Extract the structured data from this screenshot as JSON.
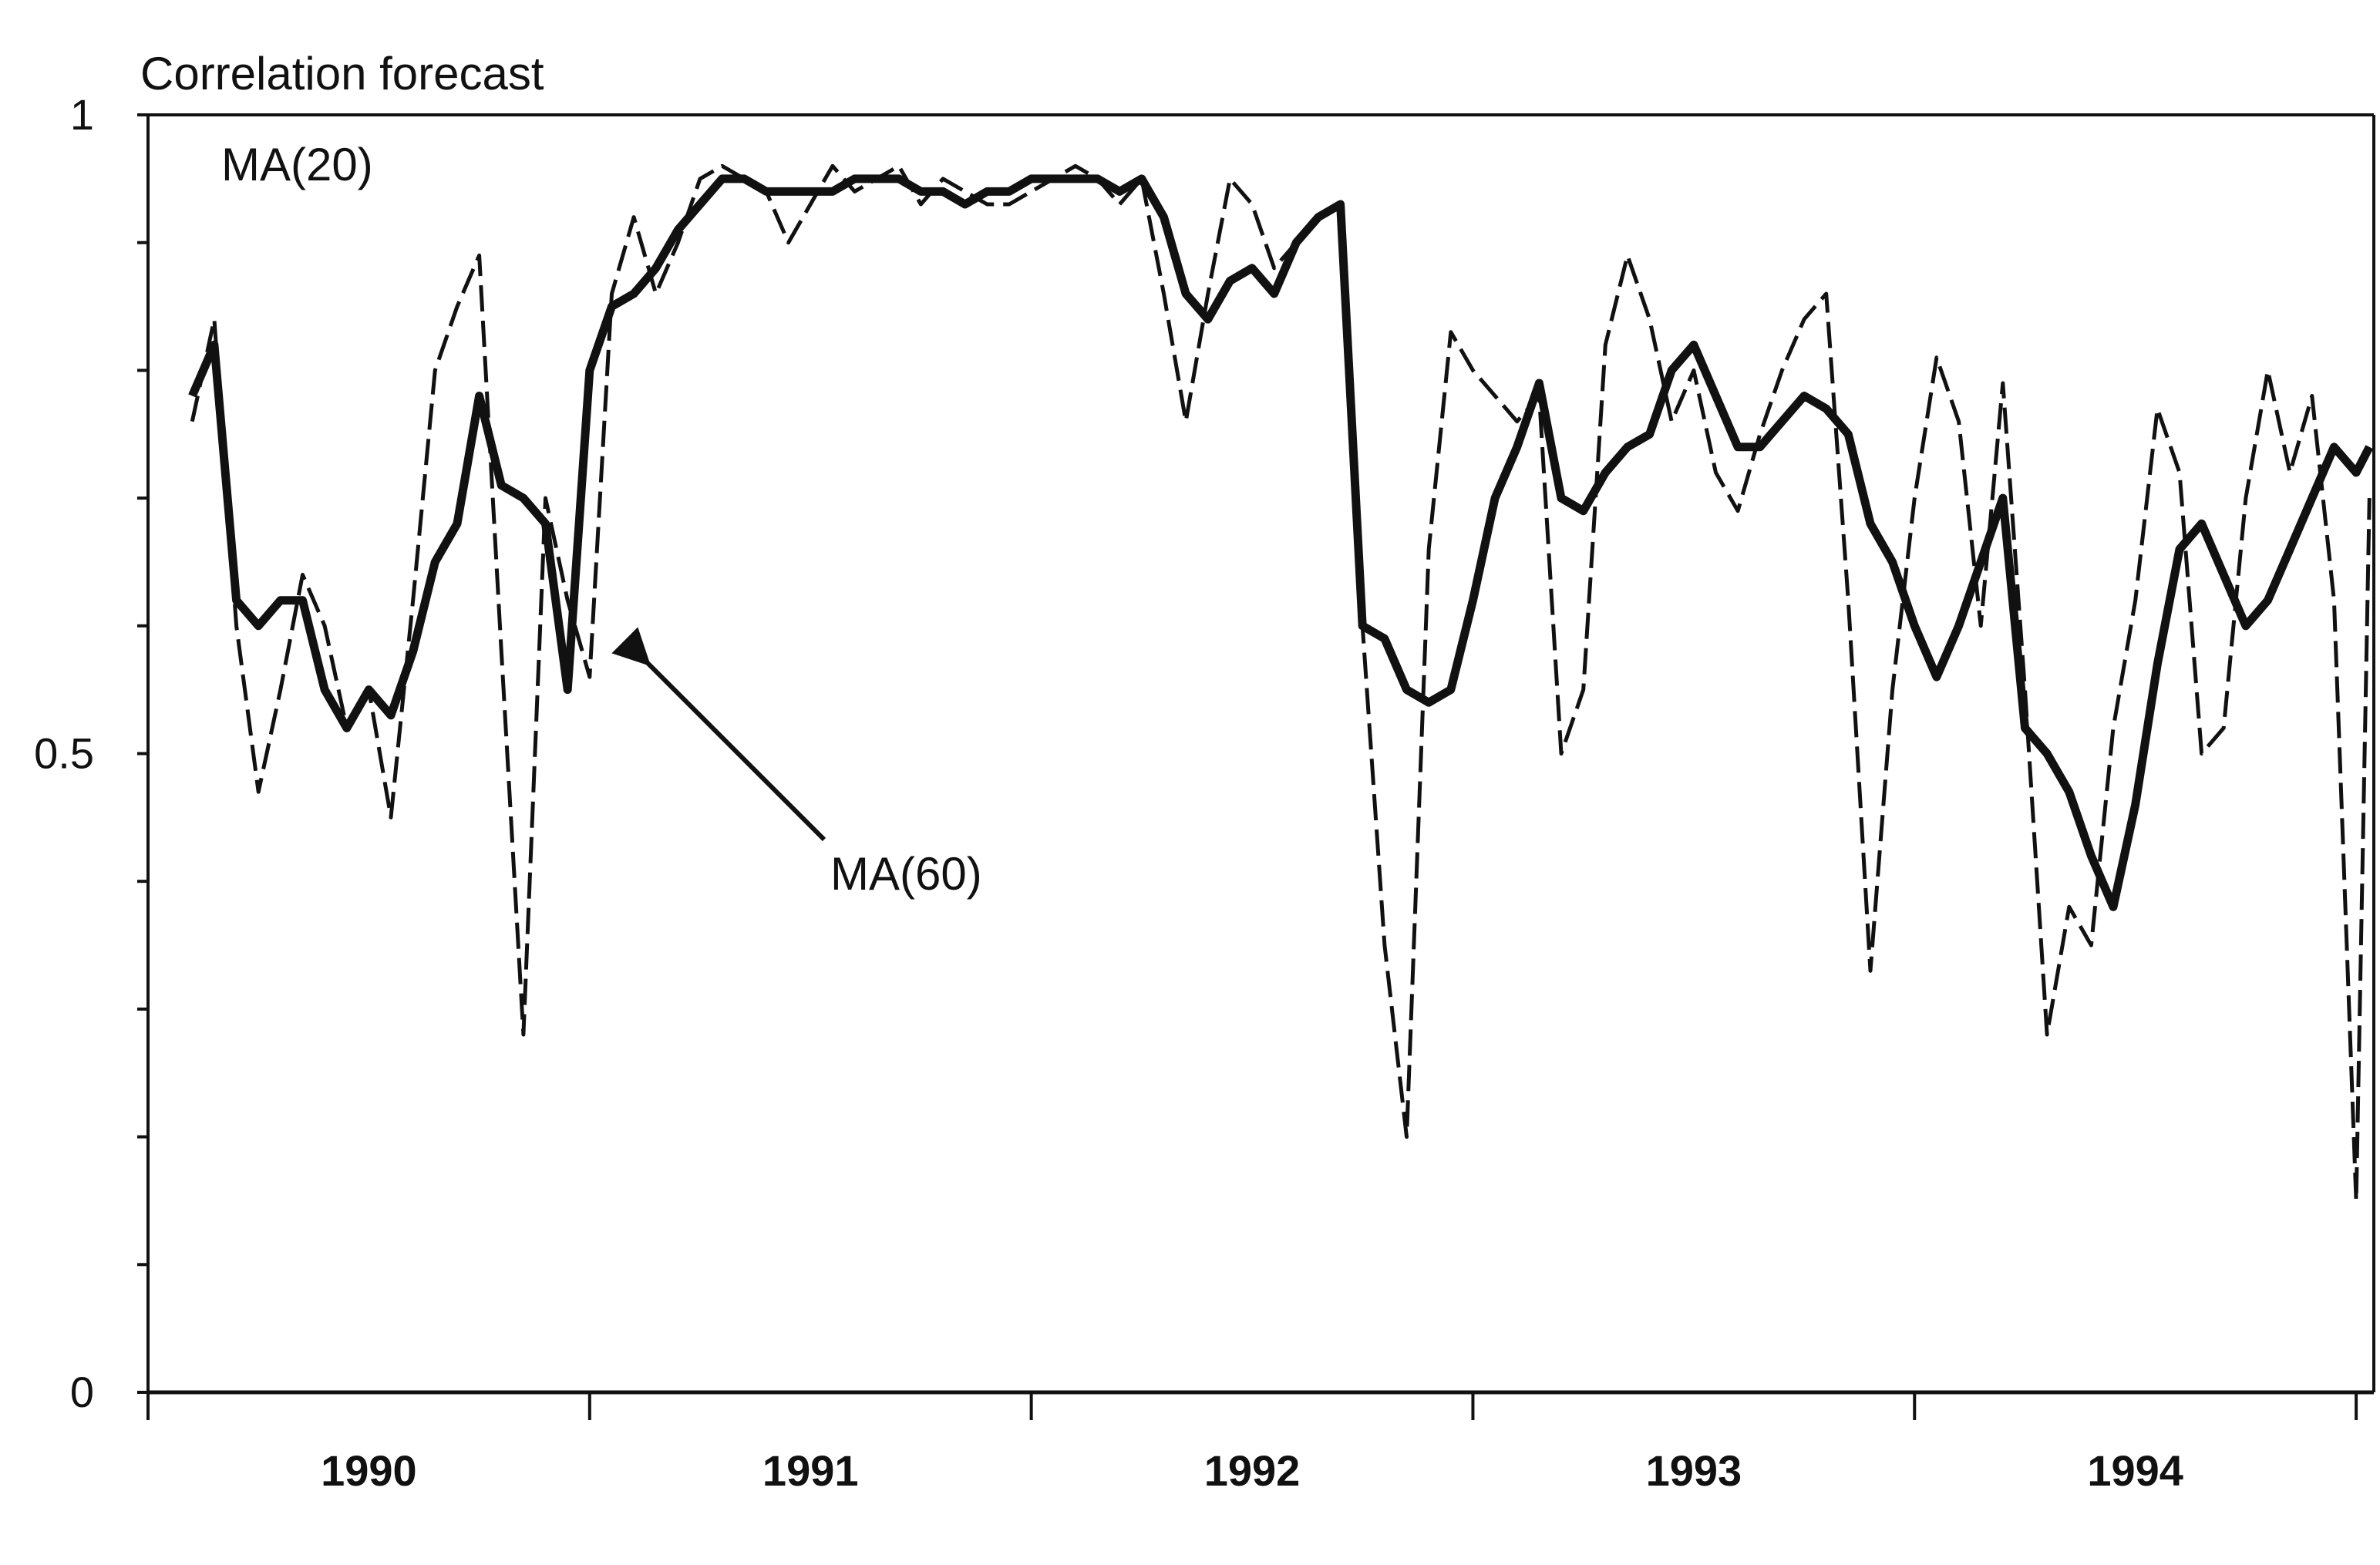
{
  "chart_data": {
    "type": "line",
    "y_label": "Correlation forecast",
    "annotation_arrow_target": "MA(60)",
    "x": [
      1990.1,
      1990.15,
      1990.2,
      1990.25,
      1990.3,
      1990.35,
      1990.4,
      1990.45,
      1990.5,
      1990.55,
      1990.6,
      1990.65,
      1990.7,
      1990.75,
      1990.8,
      1990.85,
      1990.9,
      1990.95,
      1991.0,
      1991.05,
      1991.1,
      1991.15,
      1991.2,
      1991.25,
      1991.3,
      1991.35,
      1991.4,
      1991.45,
      1991.5,
      1991.55,
      1991.6,
      1991.65,
      1991.7,
      1991.75,
      1991.8,
      1991.85,
      1991.9,
      1991.95,
      1992.0,
      1992.05,
      1992.1,
      1992.15,
      1992.2,
      1992.25,
      1992.3,
      1992.35,
      1992.4,
      1992.45,
      1992.5,
      1992.55,
      1992.6,
      1992.65,
      1992.7,
      1992.75,
      1992.8,
      1992.85,
      1992.9,
      1992.95,
      1993.0,
      1993.05,
      1993.1,
      1993.15,
      1993.2,
      1993.25,
      1993.3,
      1993.35,
      1993.4,
      1993.45,
      1993.5,
      1993.55,
      1993.6,
      1993.65,
      1993.7,
      1993.75,
      1993.8,
      1993.85,
      1993.9,
      1993.95,
      1994.0,
      1994.05,
      1994.1,
      1994.15,
      1994.2,
      1994.25,
      1994.3,
      1994.35,
      1994.4,
      1994.45,
      1994.5,
      1994.55,
      1994.6,
      1994.65,
      1994.7,
      1994.75,
      1994.8,
      1994.85,
      1994.9,
      1994.95,
      1995.0,
      1995.03
    ],
    "series": [
      {
        "name": "MA(20)",
        "color": "#111111",
        "style": "dashed",
        "values": [
          0.76,
          0.84,
          0.6,
          0.47,
          0.55,
          0.64,
          0.6,
          0.52,
          0.55,
          0.45,
          0.62,
          0.8,
          0.85,
          0.89,
          0.58,
          0.28,
          0.7,
          0.62,
          0.56,
          0.86,
          0.92,
          0.86,
          0.9,
          0.95,
          0.96,
          0.95,
          0.94,
          0.9,
          0.93,
          0.96,
          0.94,
          0.95,
          0.96,
          0.93,
          0.95,
          0.94,
          0.93,
          0.93,
          0.94,
          0.95,
          0.96,
          0.95,
          0.93,
          0.95,
          0.86,
          0.76,
          0.86,
          0.95,
          0.93,
          0.88,
          0.9,
          0.92,
          0.93,
          0.6,
          0.35,
          0.2,
          0.66,
          0.83,
          0.8,
          0.78,
          0.76,
          0.78,
          0.5,
          0.55,
          0.82,
          0.89,
          0.84,
          0.76,
          0.8,
          0.72,
          0.69,
          0.75,
          0.8,
          0.84,
          0.86,
          0.62,
          0.33,
          0.55,
          0.7,
          0.81,
          0.76,
          0.6,
          0.79,
          0.55,
          0.28,
          0.38,
          0.35,
          0.52,
          0.62,
          0.77,
          0.72,
          0.5,
          0.52,
          0.7,
          0.8,
          0.72,
          0.78,
          0.62,
          0.15,
          0.7
        ]
      },
      {
        "name": "MA(60)",
        "color": "#111111",
        "style": "solid",
        "values": [
          0.78,
          0.82,
          0.62,
          0.6,
          0.62,
          0.62,
          0.55,
          0.52,
          0.55,
          0.53,
          0.58,
          0.65,
          0.68,
          0.78,
          0.71,
          0.7,
          0.68,
          0.55,
          0.8,
          0.85,
          0.86,
          0.88,
          0.91,
          0.93,
          0.95,
          0.95,
          0.94,
          0.94,
          0.94,
          0.94,
          0.95,
          0.95,
          0.95,
          0.94,
          0.94,
          0.93,
          0.94,
          0.94,
          0.95,
          0.95,
          0.95,
          0.95,
          0.94,
          0.95,
          0.92,
          0.86,
          0.84,
          0.87,
          0.88,
          0.86,
          0.9,
          0.92,
          0.93,
          0.6,
          0.59,
          0.55,
          0.54,
          0.55,
          0.62,
          0.7,
          0.74,
          0.79,
          0.7,
          0.69,
          0.72,
          0.74,
          0.75,
          0.8,
          0.82,
          0.78,
          0.74,
          0.74,
          0.76,
          0.78,
          0.77,
          0.75,
          0.68,
          0.65,
          0.6,
          0.56,
          0.6,
          0.65,
          0.7,
          0.52,
          0.5,
          0.47,
          0.42,
          0.38,
          0.46,
          0.57,
          0.66,
          0.68,
          0.64,
          0.6,
          0.62,
          0.66,
          0.7,
          0.74,
          0.72,
          0.74
        ]
      }
    ],
    "xlim": [
      1990,
      1995.04
    ],
    "xticks": [
      {
        "value": 1990.5,
        "label": "1990"
      },
      {
        "value": 1991.5,
        "label": "1991"
      },
      {
        "value": 1992.5,
        "label": "1992"
      },
      {
        "value": 1993.5,
        "label": "1993"
      },
      {
        "value": 1994.5,
        "label": "1994"
      }
    ],
    "x_minor_ticks": [
      1990,
      1991,
      1992,
      1993,
      1994,
      1995
    ],
    "ylim": [
      0,
      1
    ],
    "yticks": [
      0,
      0.5,
      1
    ],
    "y_minor_ticks": [
      0,
      0.1,
      0.2,
      0.3,
      0.4,
      0.5,
      0.6,
      0.7,
      0.8,
      0.9,
      1
    ],
    "grid": false
  }
}
